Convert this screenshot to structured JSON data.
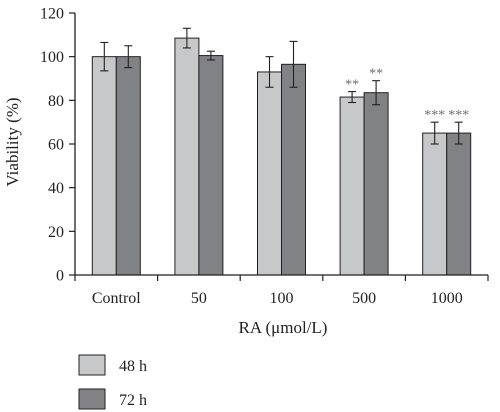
{
  "chart_data": {
    "type": "bar",
    "xlabel": "RA (μmol/L)",
    "ylabel": "Viability (%)",
    "ylim": [
      0,
      120
    ],
    "yticks": [
      0,
      20,
      40,
      60,
      80,
      100,
      120
    ],
    "categories": [
      "Control",
      "50",
      "100",
      "500",
      "1000"
    ],
    "series": [
      {
        "name": "48 h",
        "color": "#c7c8ca",
        "values": [
          100,
          108.5,
          93,
          81.5,
          65
        ],
        "errors": [
          6.5,
          4.5,
          7,
          2.5,
          5
        ],
        "significance": [
          "",
          "",
          "",
          "**",
          "***"
        ]
      },
      {
        "name": "72 h",
        "color": "#808285",
        "values": [
          100,
          100.5,
          96.5,
          83.5,
          65
        ],
        "errors": [
          5,
          2,
          10.5,
          5.5,
          5
        ],
        "significance": [
          "",
          "",
          "",
          "**",
          "***"
        ]
      }
    ],
    "legend_position": "bottom-left",
    "grid": false
  }
}
